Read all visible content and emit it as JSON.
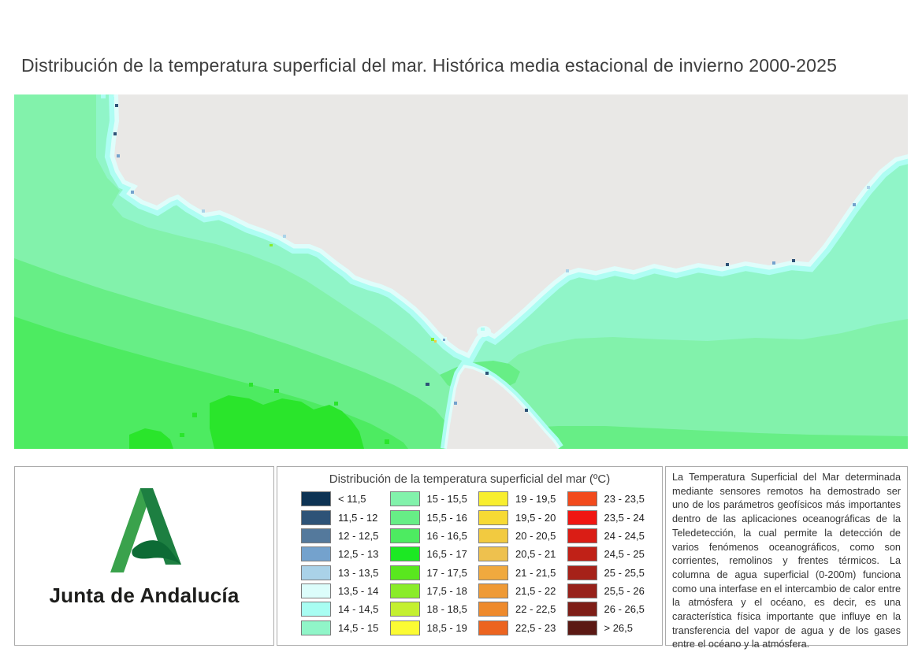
{
  "title": "Distribución de la temperatura superficial del mar. Histórica media estacional de invierno 2000-2025",
  "map": {
    "land_color": "#e9e8e6",
    "sea_base_color": "#90f5c8",
    "bands": {
      "g15": "#82f2ab",
      "g155": "#67ee86",
      "g16": "#4deb61",
      "g165": "#2ae52b",
      "fringe_cyan": "#aefdf3",
      "fringe_pale": "#dffdfb"
    }
  },
  "panels": {
    "logo": {
      "wordmark": "Junta de Andalucía",
      "green_light": "#3aa24c",
      "green_dark": "#1d7f41",
      "green_swoosh": "#0d6b35"
    },
    "legend": {
      "title": "Distribución de la temperatura superficial del mar (ºC)",
      "items": [
        {
          "label": "< 11,5",
          "color": "#0d3354"
        },
        {
          "label": "11,5 - 12",
          "color": "#2e5377"
        },
        {
          "label": "12 - 12,5",
          "color": "#54799c"
        },
        {
          "label": "12,5 - 13",
          "color": "#74a2cd"
        },
        {
          "label": "13 - 13,5",
          "color": "#aad2e8"
        },
        {
          "label": "13,5 - 14",
          "color": "#dcfdfb"
        },
        {
          "label": "14 - 14,5",
          "color": "#a8fdf2"
        },
        {
          "label": "14,5 - 15",
          "color": "#90f5c8"
        },
        {
          "label": "15 - 15,5",
          "color": "#82f2ab"
        },
        {
          "label": "15,5 - 16",
          "color": "#67ee86"
        },
        {
          "label": "16 - 16,5",
          "color": "#4deb61"
        },
        {
          "label": "16,5 - 17",
          "color": "#1ce823"
        },
        {
          "label": "17 - 17,5",
          "color": "#59e71e"
        },
        {
          "label": "17,5 - 18",
          "color": "#8aec2a"
        },
        {
          "label": "18 - 18,5",
          "color": "#c4f02f"
        },
        {
          "label": "18,5 - 19",
          "color": "#fbfb33"
        },
        {
          "label": "19 - 19,5",
          "color": "#f8ee2e"
        },
        {
          "label": "19,5 - 20",
          "color": "#f7da34"
        },
        {
          "label": "20 - 20,5",
          "color": "#f2ca40"
        },
        {
          "label": "20,5 - 21",
          "color": "#eec14e"
        },
        {
          "label": "21 - 21,5",
          "color": "#f0a93e"
        },
        {
          "label": "21,5 - 22",
          "color": "#ef9a36"
        },
        {
          "label": "22 - 22,5",
          "color": "#ee8a2c"
        },
        {
          "label": "22,5 - 23",
          "color": "#ec6420"
        },
        {
          "label": "23 - 23,5",
          "color": "#f24a1c"
        },
        {
          "label": "23,5 - 24",
          "color": "#f01612"
        },
        {
          "label": "24 - 24,5",
          "color": "#da1d15"
        },
        {
          "label": "24,5 - 25",
          "color": "#c02117"
        },
        {
          "label": "25 - 25,5",
          "color": "#a62219"
        },
        {
          "label": "25,5 - 26",
          "color": "#97211a"
        },
        {
          "label": "26 - 26,5",
          "color": "#7e1e17"
        },
        {
          "label": "> 26,5",
          "color": "#5b1914"
        }
      ]
    },
    "description": {
      "text": "La Temperatura Superficial del Mar determinada mediante sensores remotos ha demostrado ser uno de los parámetros geofísicos más importantes dentro de las aplicaciones oceanográficas de la Teledetección, la cual permite la detección de varios fenómenos oceanográficos, como son corrientes, remolinos y frentes térmicos. La columna de agua superficial (0-200m) funciona como una interfase en el intercambio de calor entre la atmósfera y el océano, es decir, es una característica física importante que influye en la transferencia del vapor de agua y de los gases entre el océano y la atmósfera."
    }
  },
  "chart_data": {
    "type": "heatmap",
    "title": "Distribución de la temperatura superficial del mar. Histórica media estacional de invierno 2000-2025",
    "variable": "Temperatura superficial del mar (ºC)",
    "legend_position": "bottom",
    "legend_bins": [
      "< 11,5",
      "11,5 - 12",
      "12 - 12,5",
      "12,5 - 13",
      "13 - 13,5",
      "13,5 - 14",
      "14 - 14,5",
      "14,5 - 15",
      "15 - 15,5",
      "15,5 - 16",
      "16 - 16,5",
      "16,5 - 17",
      "17 - 17,5",
      "17,5 - 18",
      "18 - 18,5",
      "18,5 - 19",
      "19 - 19,5",
      "19,5 - 20",
      "20 - 20,5",
      "20,5 - 21",
      "21 - 21,5",
      "21,5 - 22",
      "22 - 22,5",
      "22,5 - 23",
      "23 - 23,5",
      "23,5 - 24",
      "24 - 24,5",
      "24,5 - 25",
      "25 - 25,5",
      "25,5 - 26",
      "26 - 26,5",
      "> 26,5"
    ],
    "bin_colors": [
      "#0d3354",
      "#2e5377",
      "#54799c",
      "#74a2cd",
      "#aad2e8",
      "#dcfdfb",
      "#a8fdf2",
      "#90f5c8",
      "#82f2ab",
      "#67ee86",
      "#4deb61",
      "#1ce823",
      "#59e71e",
      "#8aec2a",
      "#c4f02f",
      "#fbfb33",
      "#f8ee2e",
      "#f7da34",
      "#f2ca40",
      "#eec14e",
      "#f0a93e",
      "#ef9a36",
      "#ee8a2c",
      "#ec6420",
      "#f24a1c",
      "#f01612",
      "#da1d15",
      "#c02117",
      "#a62219",
      "#97211a",
      "#7e1e17",
      "#5b1914"
    ],
    "values_displayed_range_c": [
      "13,5",
      "17"
    ]
  }
}
